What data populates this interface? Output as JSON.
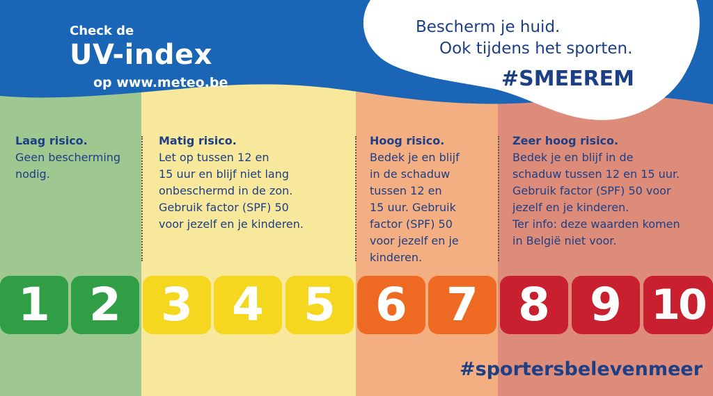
{
  "header": {
    "check": "Check de",
    "title": "UV-index",
    "site": "op www.meteo.be",
    "bubble_line1": "Bescherm je huid.",
    "bubble_line2": "Ook tijdens het sporten.",
    "hashtag": "#SMEEREM"
  },
  "colors": {
    "header_blue": "#1a65b5",
    "text_blue": "#1d3f86",
    "low_bg": "#9fc890",
    "moderate_bg": "#f8e89b",
    "high_bg": "#f3ae82",
    "very_high_bg": "#de8c7a",
    "tile_green": "#2f9e44",
    "tile_yellow": "#f6d71f",
    "tile_orange": "#ee6a22",
    "tile_red": "#c8202f"
  },
  "zones": [
    {
      "title": "Laag risico.",
      "lines": [
        "Geen bescherming",
        "nodig."
      ]
    },
    {
      "title": "Matig risico.",
      "lines": [
        "Let op tussen 12 en",
        "15 uur en blijf niet lang",
        "onbeschermd in de zon.",
        "Gebruik factor (SPF) 50",
        "voor jezelf en je kinderen."
      ]
    },
    {
      "title": "Hoog risico.",
      "lines": [
        "Bedek je en blijf",
        "in de schaduw",
        "tussen 12 en",
        "15 uur. Gebruik",
        "factor (SPF) 50",
        "voor jezelf en je",
        "kinderen."
      ]
    },
    {
      "title": "Zeer hoog risico.",
      "lines": [
        "Bedek je en blijf in de",
        "schaduw tussen 12 en 15 uur.",
        "Gebruik factor (SPF) 50 voor",
        "jezelf en je kinderen.",
        "Ter info: deze waarden komen",
        "in België niet voor."
      ]
    }
  ],
  "scale": [
    "1",
    "2",
    "3",
    "4",
    "5",
    "6",
    "7",
    "8",
    "9",
    "10"
  ],
  "footer": {
    "hashtag": "#sportersbelevenmeer"
  }
}
